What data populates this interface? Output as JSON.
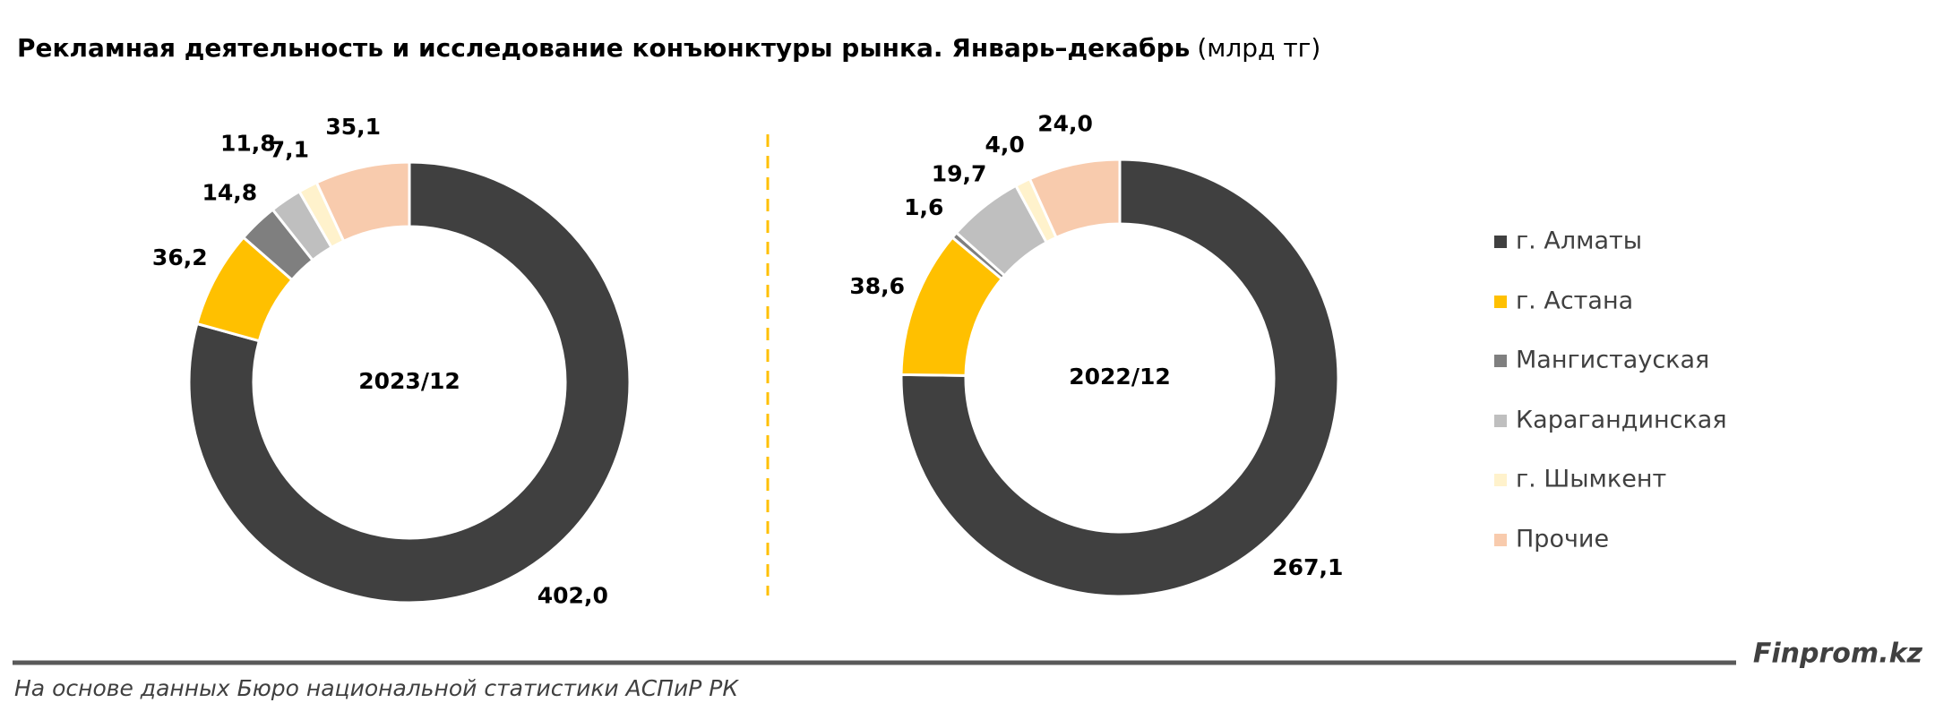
{
  "title": "Рекламная деятельность и исследование конъюнктуры рынка. Январь–декабрь",
  "title_unit": "(млрд тг)",
  "source": "На основе данных Бюро национальной статистики АСПиР РК",
  "brand": "Finprom.kz",
  "chart_data": [
    {
      "type": "donut",
      "center_label": "2023/12",
      "categories": [
        "г. Алматы",
        "г. Астана",
        "Мангистауская",
        "Карагандинская",
        "г. Шымкент",
        "Прочие"
      ],
      "values": [
        402.0,
        36.2,
        14.8,
        11.8,
        7.1,
        35.1
      ],
      "value_labels": [
        "402,0",
        "36,2",
        "14,8",
        "11,8",
        "7,1",
        "35,1"
      ],
      "colors": [
        "#404040",
        "#ffc000",
        "#7f7f7f",
        "#bfbfbf",
        "#fff2cc",
        "#f8cbad"
      ]
    },
    {
      "type": "donut",
      "center_label": "2022/12",
      "categories": [
        "г. Алматы",
        "г. Астана",
        "Мангистауская",
        "Карагандинская",
        "г. Шымкент",
        "Прочие"
      ],
      "values": [
        267.1,
        38.6,
        1.6,
        19.7,
        4.0,
        24.0
      ],
      "value_labels": [
        "267,1",
        "38,6",
        "1,6",
        "19,7",
        "4,0",
        "24,0"
      ],
      "colors": [
        "#404040",
        "#ffc000",
        "#7f7f7f",
        "#bfbfbf",
        "#fff2cc",
        "#f8cbad"
      ]
    }
  ]
}
